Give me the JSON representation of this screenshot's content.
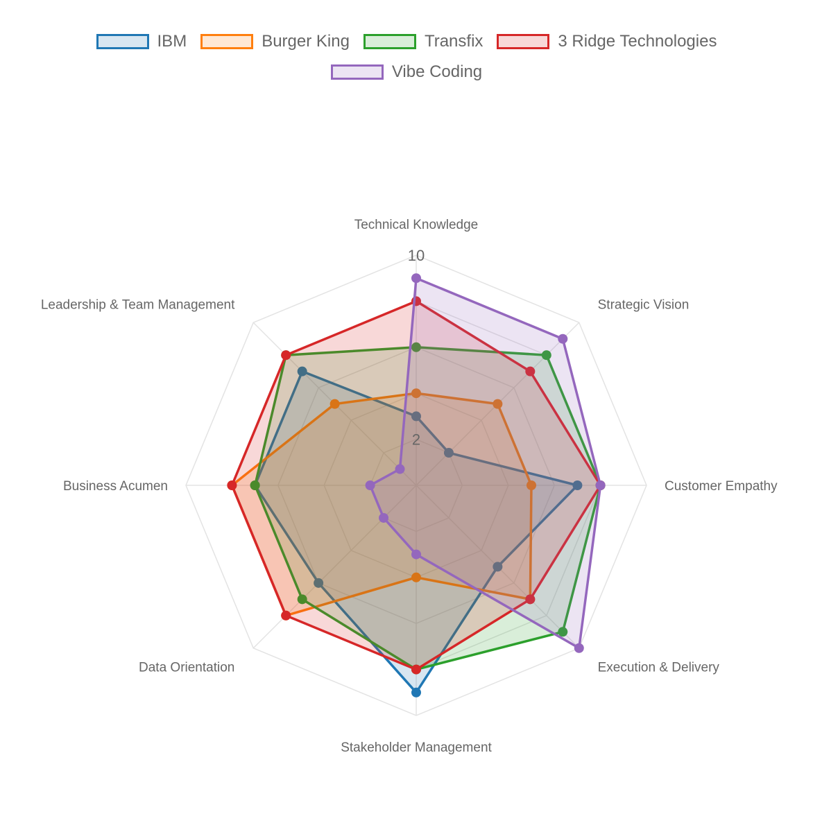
{
  "chart_data": {
    "type": "radar",
    "title": "",
    "axes": [
      "Technical Knowledge",
      "Strategic Vision",
      "Customer Empathy",
      "Execution & Delivery",
      "Stakeholder Management",
      "Data Orientation",
      "Business Acumen",
      "Leadership & Team Management"
    ],
    "range": [
      0,
      10
    ],
    "tick_values": [
      2,
      4,
      6,
      8,
      10
    ],
    "tick_labels_shown": [
      "2",
      "10"
    ],
    "grid": true,
    "legend_position": "top",
    "series": [
      {
        "name": "IBM",
        "color": "#1f77b4",
        "fill": "rgba(31,119,180,0.18)",
        "values": [
          3,
          2,
          7,
          5,
          9,
          6,
          7,
          7
        ]
      },
      {
        "name": "Burger King",
        "color": "#ff7f0e",
        "fill": "rgba(255,127,14,0.18)",
        "values": [
          4,
          5,
          5,
          7,
          4,
          8,
          8,
          5
        ]
      },
      {
        "name": "Transfix",
        "color": "#2ca02c",
        "fill": "rgba(44,160,44,0.18)",
        "values": [
          6,
          8,
          8,
          9,
          8,
          7,
          7,
          8
        ]
      },
      {
        "name": "3 Ridge Technologies",
        "color": "#d62728",
        "fill": "rgba(214,39,40,0.18)",
        "values": [
          8,
          7,
          8,
          7,
          8,
          8,
          8,
          8
        ]
      },
      {
        "name": "Vibe Coding",
        "color": "#9467bd",
        "fill": "rgba(148,103,189,0.18)",
        "values": [
          9,
          9,
          8,
          10,
          3,
          2,
          2,
          1
        ]
      }
    ]
  }
}
